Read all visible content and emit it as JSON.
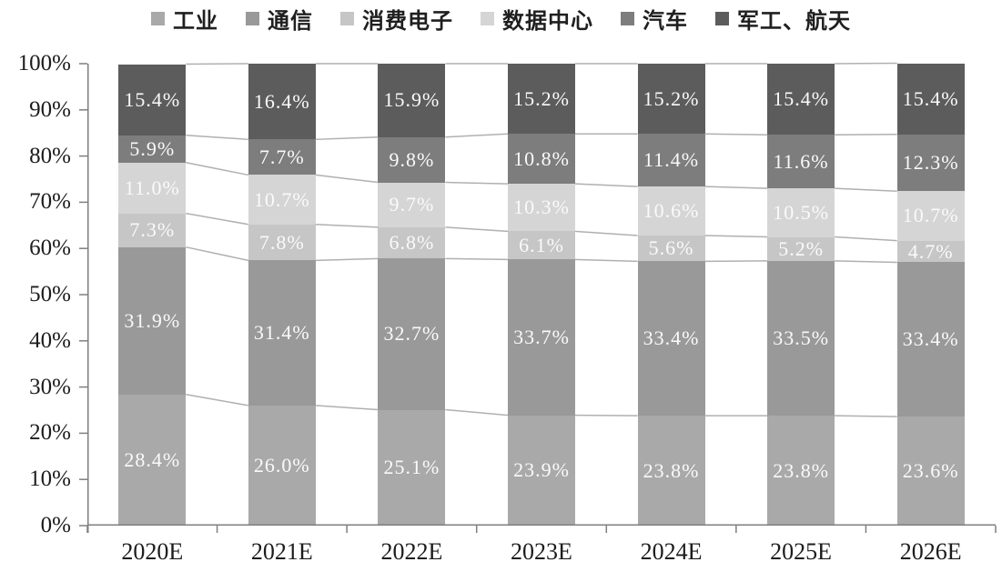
{
  "chart_data": {
    "type": "bar",
    "subtype": "stacked-100-percent-column-with-connector-lines",
    "title": "",
    "xlabel": "",
    "ylabel": "",
    "ylim": [
      0,
      100
    ],
    "grid": false,
    "legend_position": "top",
    "value_suffix": "%",
    "categories": [
      "2020E",
      "2021E",
      "2022E",
      "2023E",
      "2024E",
      "2025E",
      "2026E"
    ],
    "y_tick_labels": [
      "0%",
      "10%",
      "20%",
      "30%",
      "40%",
      "50%",
      "60%",
      "70%",
      "80%",
      "90%",
      "100%"
    ],
    "series": [
      {
        "name": "工业",
        "color": "#a9a9a9",
        "values": [
          28.4,
          26.0,
          25.1,
          23.9,
          23.8,
          23.8,
          23.6
        ]
      },
      {
        "name": "通信",
        "color": "#999999",
        "values": [
          31.9,
          31.4,
          32.7,
          33.7,
          33.4,
          33.5,
          33.4
        ]
      },
      {
        "name": "消费电子",
        "color": "#c6c6c6",
        "values": [
          7.3,
          7.8,
          6.8,
          6.1,
          5.6,
          5.2,
          4.7
        ]
      },
      {
        "name": "数据中心",
        "color": "#d5d5d5",
        "values": [
          11.0,
          10.7,
          9.7,
          10.3,
          10.6,
          10.5,
          10.7
        ]
      },
      {
        "name": "汽车",
        "color": "#7d7d7d",
        "values": [
          5.9,
          7.7,
          9.8,
          10.8,
          11.4,
          11.6,
          12.3
        ]
      },
      {
        "name": "军工、航天",
        "color": "#5c5c5c",
        "values": [
          15.4,
          16.4,
          15.9,
          15.2,
          15.2,
          15.4,
          15.4
        ]
      }
    ],
    "colors": {
      "axis": "#7f7f7f",
      "connector_line": "#b0b0b0",
      "data_label": "#fafafa",
      "tick_label": "#1c1c1c"
    }
  }
}
